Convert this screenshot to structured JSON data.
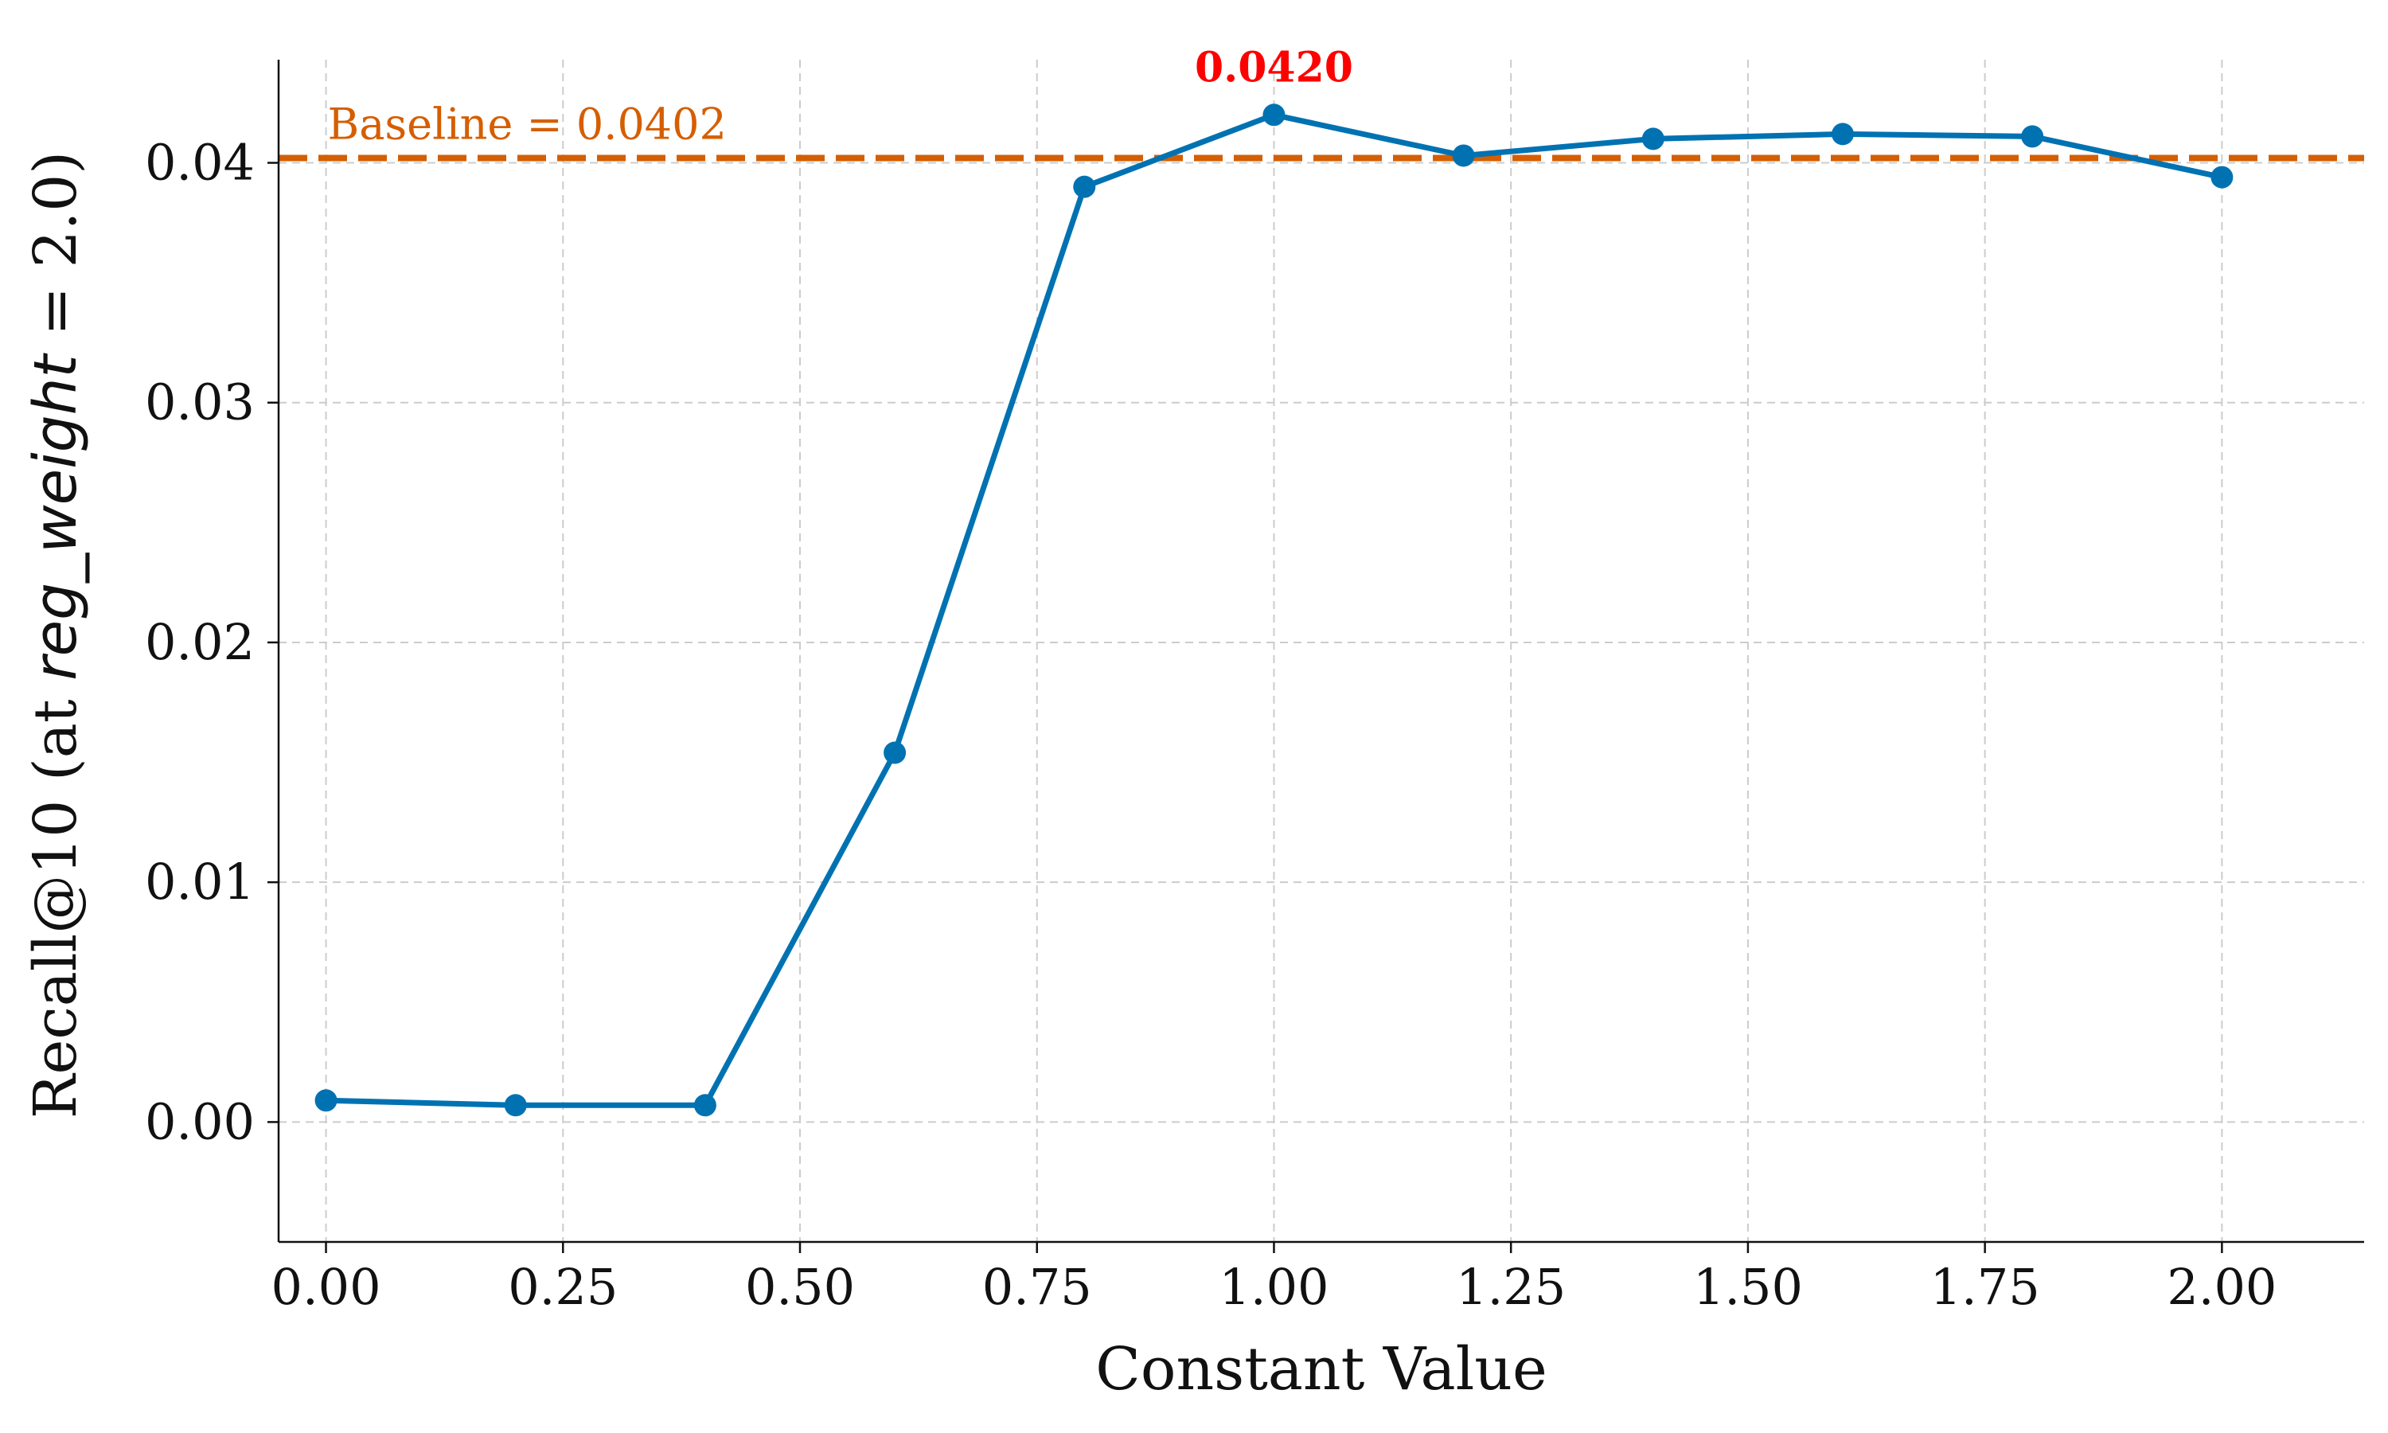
{
  "chart_data": {
    "type": "line",
    "xlabel": "Constant Value",
    "ylabel_parts": [
      "Recall@10 (at ",
      "reg_weight",
      " = 2.0)"
    ],
    "xlim": [
      -0.05,
      2.15
    ],
    "ylim": [
      -0.005,
      0.0443
    ],
    "x_ticks": [
      0.0,
      0.25,
      0.5,
      0.75,
      1.0,
      1.25,
      1.5,
      1.75,
      2.0
    ],
    "x_tick_labels": [
      "0.00",
      "0.25",
      "0.50",
      "0.75",
      "1.00",
      "1.25",
      "1.50",
      "1.75",
      "2.00"
    ],
    "y_ticks": [
      0.0,
      0.01,
      0.02,
      0.03,
      0.04
    ],
    "y_tick_labels": [
      "0.00",
      "0.01",
      "0.02",
      "0.03",
      "0.04"
    ],
    "grid": true,
    "series": [
      {
        "x": [
          0.0,
          0.2,
          0.4,
          0.6,
          0.8,
          1.0,
          1.2,
          1.4,
          1.6,
          1.8,
          2.0
        ],
        "y": [
          0.0009,
          0.0007,
          0.0007,
          0.0154,
          0.039,
          0.042,
          0.0403,
          0.041,
          0.0412,
          0.0411,
          0.0394
        ],
        "color": "#0072B2"
      }
    ],
    "baseline": {
      "value": 0.0402,
      "label": "Baseline = 0.0402",
      "color": "#D55E00"
    },
    "annotations": [
      {
        "x": 1.0,
        "y": 0.042,
        "text": "0.0420",
        "color": "#FF0000"
      }
    ]
  }
}
